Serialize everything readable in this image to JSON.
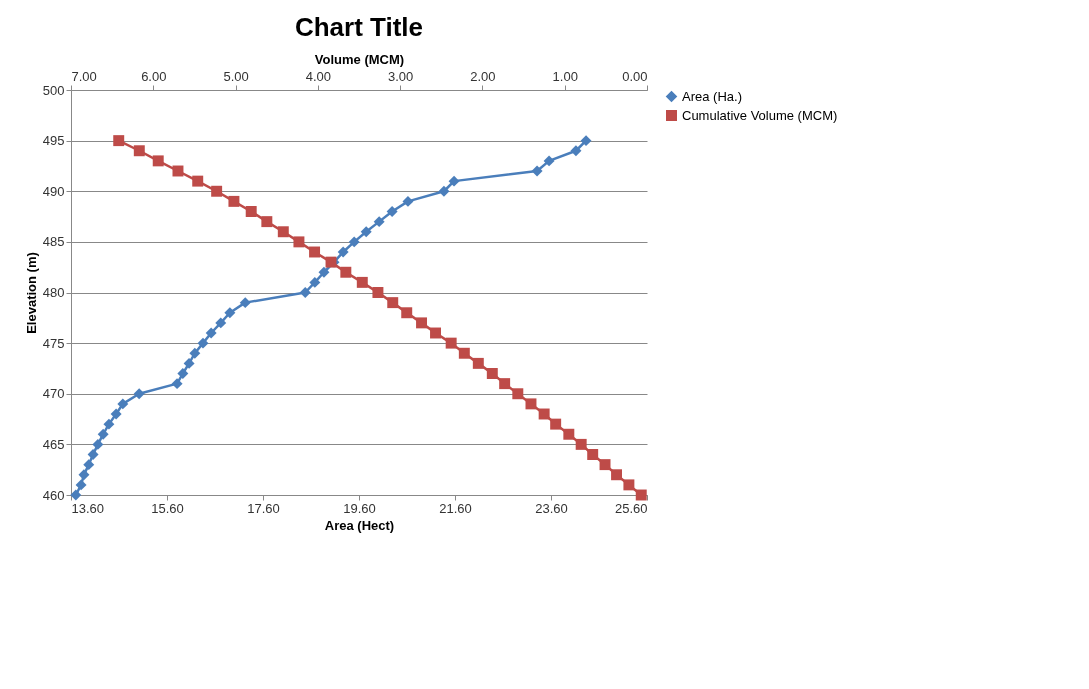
{
  "chart_data": {
    "type": "line",
    "title": "Chart Title",
    "xlabel": "Area (Hect)",
    "x2label": "Volume (MCM)",
    "ylabel": "Elevation (m)",
    "xlim": [
      13.6,
      25.6
    ],
    "xticks": [
      {
        "value": 13.6,
        "label": "13.60"
      },
      {
        "value": 15.6,
        "label": "15.60"
      },
      {
        "value": 17.6,
        "label": "17.60"
      },
      {
        "value": 19.6,
        "label": "19.60"
      },
      {
        "value": 21.6,
        "label": "21.60"
      },
      {
        "value": 23.6,
        "label": "23.60"
      },
      {
        "value": 25.6,
        "label": "25.60"
      }
    ],
    "x2lim": [
      7,
      0
    ],
    "x2ticks": [
      {
        "value": 7,
        "label": "7.00"
      },
      {
        "value": 6,
        "label": "6.00"
      },
      {
        "value": 5,
        "label": "5.00"
      },
      {
        "value": 4,
        "label": "4.00"
      },
      {
        "value": 3,
        "label": "3.00"
      },
      {
        "value": 2,
        "label": "2.00"
      },
      {
        "value": 1,
        "label": "1.00"
      },
      {
        "value": 0,
        "label": "0.00"
      }
    ],
    "ylim": [
      460,
      500
    ],
    "yticks": [
      460,
      465,
      470,
      475,
      480,
      485,
      490,
      495,
      500
    ],
    "grid": "y",
    "legend": "right",
    "series": [
      {
        "name": "Area (Ha.)",
        "color": "#4a7ebb",
        "marker": "diamond",
        "x": [
          13.7,
          13.81,
          13.87,
          13.97,
          14.06,
          14.16,
          14.27,
          14.39,
          14.54,
          14.68,
          15.02,
          15.81,
          15.93,
          16.06,
          16.18,
          16.35,
          16.52,
          16.72,
          16.91,
          17.23,
          18.48,
          18.68,
          18.87,
          19.08,
          19.27,
          19.5,
          19.75,
          20.02,
          20.29,
          20.62,
          21.37,
          21.58,
          23.31,
          23.56,
          24.12,
          24.33
        ],
        "values": [
          460,
          461,
          462,
          463,
          464,
          465,
          466,
          467,
          468,
          469,
          470,
          471,
          472,
          473,
          474,
          475,
          476,
          477,
          478,
          479,
          480,
          481,
          482,
          483,
          484,
          485,
          486,
          487,
          488,
          489,
          490,
          491,
          492,
          493,
          494,
          495
        ]
      },
      {
        "name": "Cumulative Volume (MCM)",
        "color": "#be4b48",
        "marker": "square",
        "axis": "x2",
        "x": [
          0.07,
          0.22,
          0.37,
          0.51,
          0.66,
          0.8,
          0.95,
          1.11,
          1.25,
          1.41,
          1.57,
          1.73,
          1.88,
          2.05,
          2.22,
          2.38,
          2.57,
          2.74,
          2.92,
          3.09,
          3.27,
          3.46,
          3.66,
          3.84,
          4.04,
          4.23,
          4.42,
          4.62,
          4.81,
          5.02,
          5.23,
          5.46,
          5.7,
          5.94,
          6.17,
          6.42
        ],
        "values": [
          460,
          461,
          462,
          463,
          464,
          465,
          466,
          467,
          468,
          469,
          470,
          471,
          472,
          473,
          474,
          475,
          476,
          477,
          478,
          479,
          480,
          481,
          482,
          483,
          484,
          485,
          486,
          487,
          488,
          489,
          490,
          491,
          492,
          493,
          494,
          495
        ]
      }
    ]
  }
}
